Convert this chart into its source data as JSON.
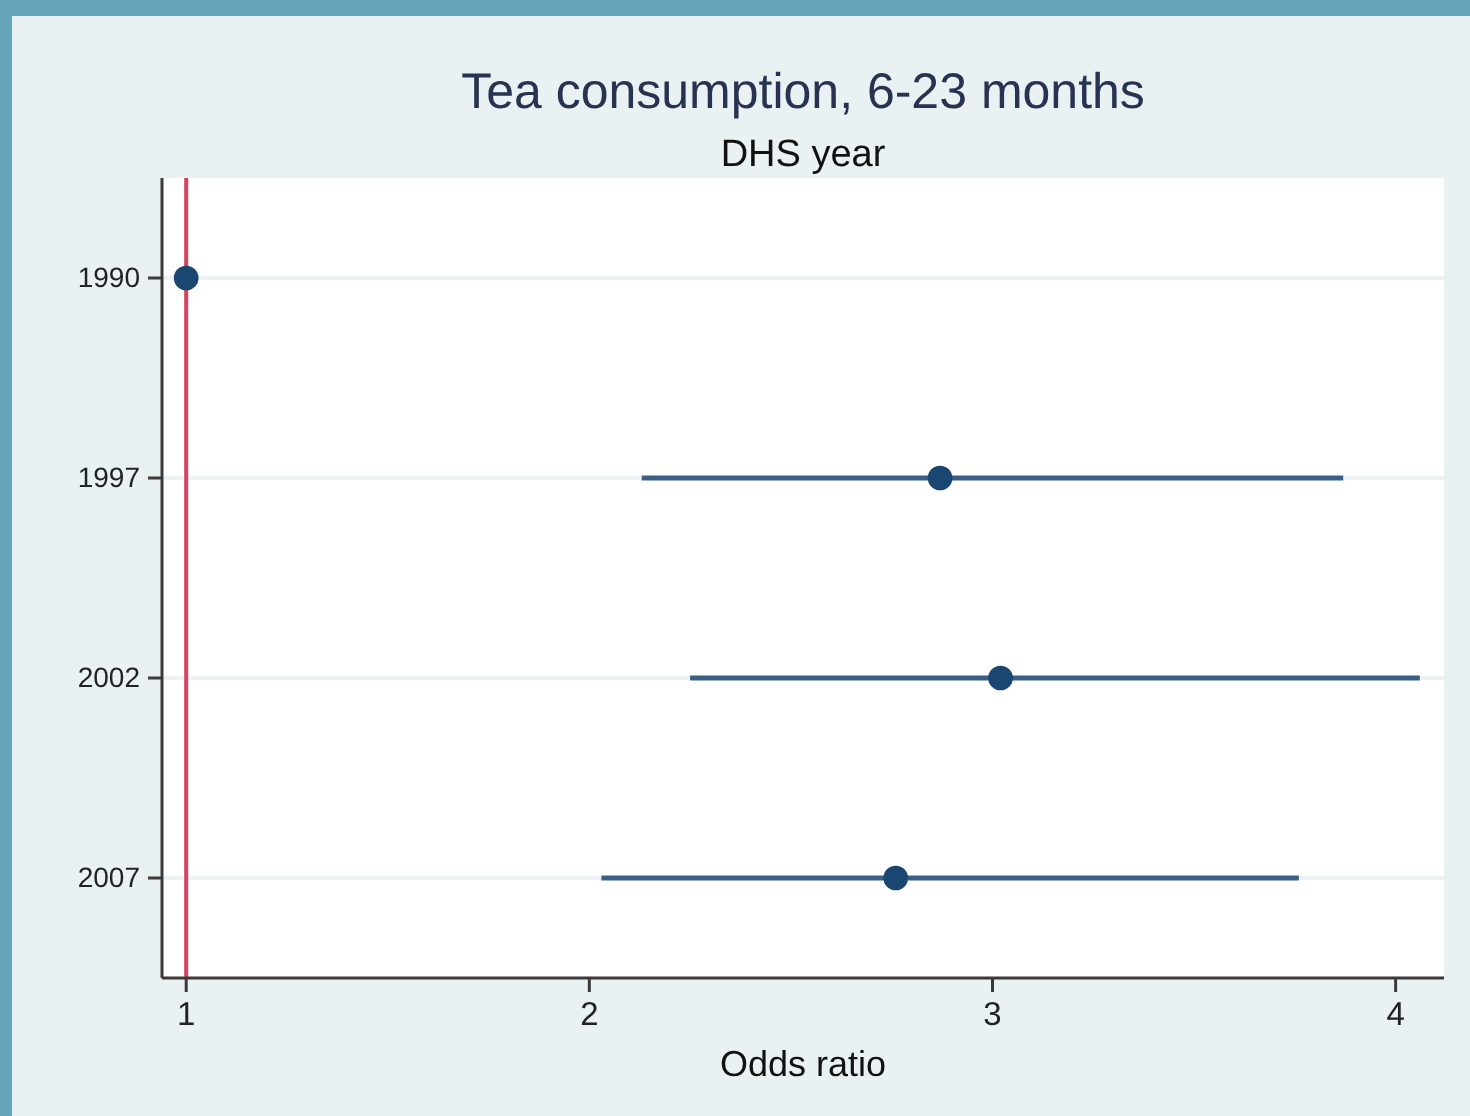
{
  "chart_data": {
    "type": "scatter",
    "title": "Tea consumption, 6-23 months",
    "subtitle": "DHS year",
    "xlabel": "Odds ratio",
    "orientation": "horizontal",
    "categories": [
      "1990",
      "1997",
      "2002",
      "2007"
    ],
    "series": [
      {
        "color": "#1a4672",
        "values": [
          1,
          2.87,
          3.02,
          2.76
        ],
        "errors": [
          null,
          [
            2.13,
            3.87
          ],
          [
            2.25,
            4.06
          ],
          [
            2.03,
            3.76
          ]
        ]
      }
    ],
    "xlim": [
      0.94,
      4.12
    ],
    "xticks": [
      1,
      2,
      3,
      4
    ],
    "ref_lines": [
      {
        "axis": "x",
        "value": 1,
        "color": "#d6435f"
      }
    ],
    "grid": "y",
    "marker": "circle"
  }
}
